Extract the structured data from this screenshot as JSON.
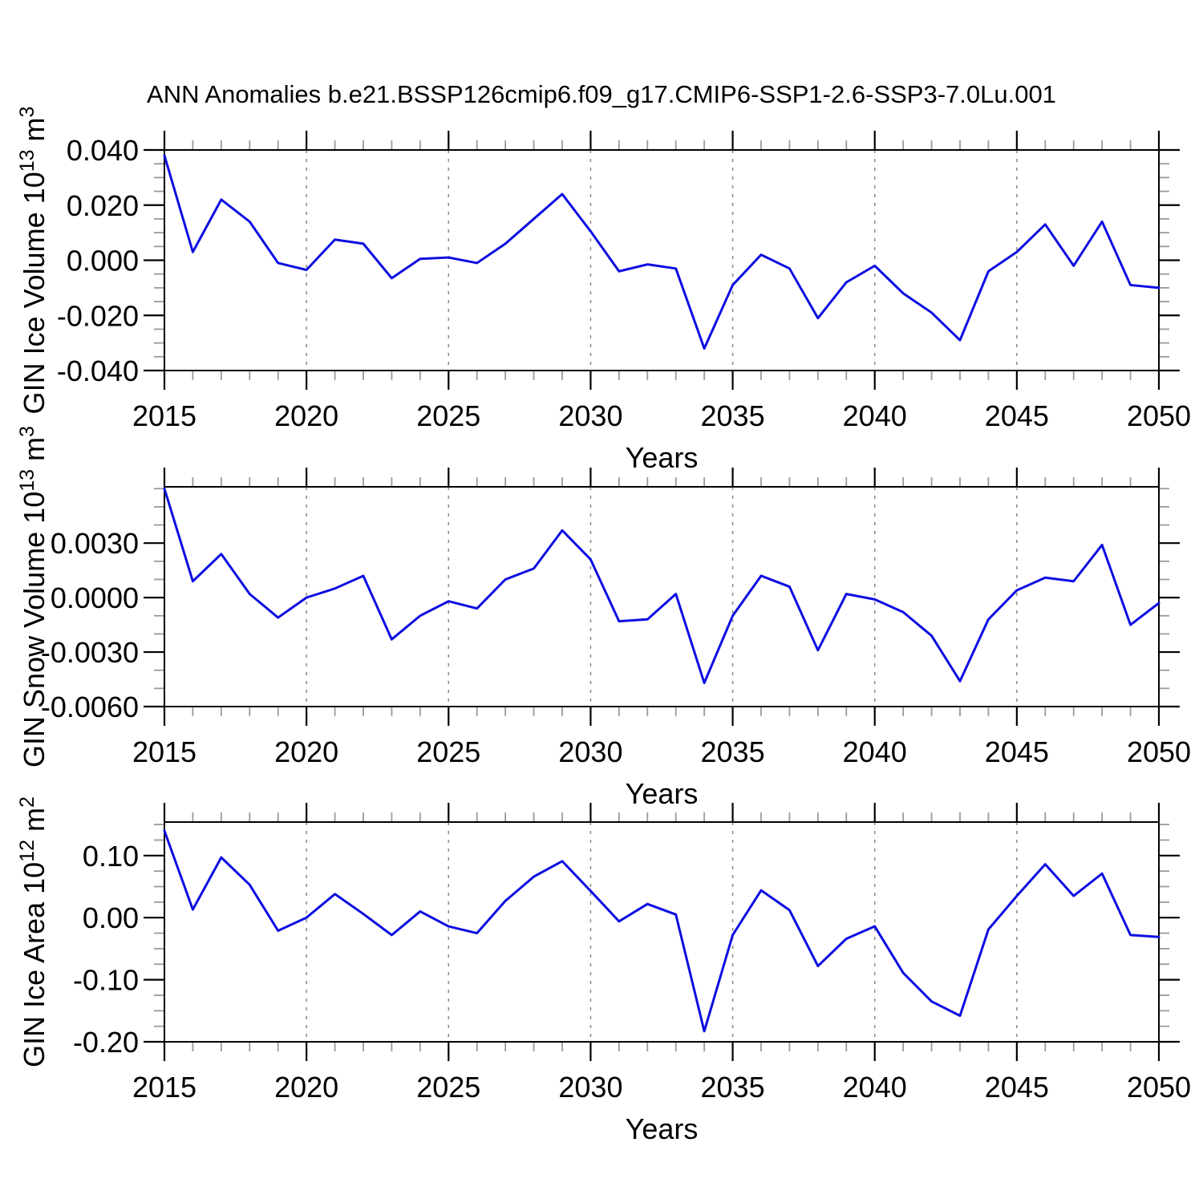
{
  "title": "ANN Anomalies b.e21.BSSP126cmip6.f09_g17.CMIP6-SSP1-2.6-SSP3-7.0Lu.001",
  "colors": {
    "line": "#0d0de2",
    "axis": "#000000",
    "minor_tick": "#9a9a9a",
    "grid": "#8a8a8a",
    "text": "#000000",
    "background": "#ffffff"
  },
  "chart_data": [
    {
      "type": "line",
      "id": "ice-volume",
      "ylabel": "GIN Ice Volume 10¹³ m³",
      "ylabel_parts": [
        {
          "text": "GIN Ice Volume 10",
          "super": false
        },
        {
          "text": "13",
          "super": true
        },
        {
          "text": " m",
          "super": false
        },
        {
          "text": "3",
          "super": true
        }
      ],
      "xlabel": "Years",
      "xlim": [
        2015,
        2050
      ],
      "ylim": [
        -0.04,
        0.04
      ],
      "xtick_values": [
        2015,
        2020,
        2025,
        2030,
        2035,
        2040,
        2045,
        2050
      ],
      "xtick_labels": [
        "2015",
        "2020",
        "2025",
        "2030",
        "2035",
        "2040",
        "2045",
        "2050"
      ],
      "x_major_step": 5,
      "x_minor_step": 1,
      "ytick_values": [
        0.04,
        0.02,
        0.0,
        -0.02,
        -0.04
      ],
      "ytick_labels": [
        "0.040",
        "0.020",
        "0.000",
        "-0.020",
        "-0.040"
      ],
      "y_minor_step": 0.005,
      "grid_years": [
        2020,
        2025,
        2030,
        2035,
        2040,
        2045
      ],
      "x": [
        2015,
        2016,
        2017,
        2018,
        2019,
        2020,
        2021,
        2022,
        2023,
        2024,
        2025,
        2026,
        2027,
        2028,
        2029,
        2030,
        2031,
        2032,
        2033,
        2034,
        2035,
        2036,
        2037,
        2038,
        2039,
        2040,
        2041,
        2042,
        2043,
        2044,
        2045,
        2046,
        2047,
        2048,
        2049,
        2050
      ],
      "values": [
        0.038,
        0.003,
        0.022,
        0.014,
        -0.001,
        -0.0035,
        0.0075,
        0.006,
        -0.0065,
        0.0005,
        0.001,
        -0.001,
        0.006,
        0.015,
        0.024,
        0.0105,
        -0.004,
        -0.0015,
        -0.003,
        -0.032,
        -0.009,
        0.002,
        -0.003,
        -0.021,
        -0.008,
        -0.002,
        -0.012,
        -0.019,
        -0.029,
        -0.004,
        0.003,
        0.013,
        -0.002,
        0.014,
        -0.009,
        -0.01
      ]
    },
    {
      "type": "line",
      "id": "snow-volume",
      "ylabel": "GIN Snow Volume 10¹³ m³",
      "ylabel_parts": [
        {
          "text": "GIN Snow Volume 10",
          "super": false
        },
        {
          "text": "13",
          "super": true
        },
        {
          "text": " m",
          "super": false
        },
        {
          "text": "3",
          "super": true
        }
      ],
      "xlabel": "Years",
      "xlim": [
        2015,
        2050
      ],
      "ylim": [
        -0.006,
        0.0061
      ],
      "xtick_values": [
        2015,
        2020,
        2025,
        2030,
        2035,
        2040,
        2045,
        2050
      ],
      "xtick_labels": [
        "2015",
        "2020",
        "2025",
        "2030",
        "2035",
        "2040",
        "2045",
        "2050"
      ],
      "x_major_step": 5,
      "x_minor_step": 1,
      "ytick_values": [
        0.003,
        0.0,
        -0.003,
        -0.006
      ],
      "ytick_labels": [
        "0.0030",
        "0.0000",
        "-0.0030",
        "-0.0060"
      ],
      "y_minor_step": 0.001,
      "grid_years": [
        2020,
        2025,
        2030,
        2035,
        2040,
        2045
      ],
      "x": [
        2015,
        2016,
        2017,
        2018,
        2019,
        2020,
        2021,
        2022,
        2023,
        2024,
        2025,
        2026,
        2027,
        2028,
        2029,
        2030,
        2031,
        2032,
        2033,
        2034,
        2035,
        2036,
        2037,
        2038,
        2039,
        2040,
        2041,
        2042,
        2043,
        2044,
        2045,
        2046,
        2047,
        2048,
        2049,
        2050
      ],
      "values": [
        0.006,
        0.0009,
        0.0024,
        0.0002,
        -0.0011,
        0.0,
        0.0005,
        0.0012,
        -0.0023,
        -0.001,
        -0.0002,
        -0.0006,
        0.001,
        0.0016,
        0.0037,
        0.0021,
        -0.0013,
        -0.0012,
        0.0002,
        -0.0047,
        -0.001,
        0.0012,
        0.0006,
        -0.0029,
        0.0002,
        -0.0001,
        -0.0008,
        -0.0021,
        -0.0046,
        -0.0012,
        0.0004,
        0.0011,
        0.0009,
        0.0029,
        -0.0015,
        -0.0003
      ]
    },
    {
      "type": "line",
      "id": "ice-area",
      "ylabel": "GIN Ice Area 10¹² m²",
      "ylabel_parts": [
        {
          "text": "GIN Ice Area 10",
          "super": false
        },
        {
          "text": "12",
          "super": true
        },
        {
          "text": " m",
          "super": false
        },
        {
          "text": "2",
          "super": true
        }
      ],
      "xlabel": "Years",
      "xlim": [
        2015,
        2050
      ],
      "ylim": [
        -0.2,
        0.154
      ],
      "xtick_values": [
        2015,
        2020,
        2025,
        2030,
        2035,
        2040,
        2045,
        2050
      ],
      "xtick_labels": [
        "2015",
        "2020",
        "2025",
        "2030",
        "2035",
        "2040",
        "2045",
        "2050"
      ],
      "x_major_step": 5,
      "x_minor_step": 1,
      "ytick_values": [
        0.1,
        0.0,
        -0.1,
        -0.2
      ],
      "ytick_labels": [
        "0.10",
        "0.00",
        "-0.10",
        "-0.20"
      ],
      "y_minor_step": 0.025,
      "grid_years": [
        2020,
        2025,
        2030,
        2035,
        2040,
        2045
      ],
      "x": [
        2015,
        2016,
        2017,
        2018,
        2019,
        2020,
        2021,
        2022,
        2023,
        2024,
        2025,
        2026,
        2027,
        2028,
        2029,
        2030,
        2031,
        2032,
        2033,
        2034,
        2035,
        2036,
        2037,
        2038,
        2039,
        2040,
        2041,
        2042,
        2043,
        2044,
        2045,
        2046,
        2047,
        2048,
        2049,
        2050
      ],
      "values": [
        0.14,
        0.013,
        0.097,
        0.053,
        -0.021,
        0.0,
        0.038,
        0.006,
        -0.028,
        0.01,
        -0.014,
        -0.025,
        0.027,
        0.066,
        0.091,
        0.043,
        -0.006,
        0.022,
        0.005,
        -0.183,
        -0.028,
        0.044,
        0.012,
        -0.078,
        -0.034,
        -0.014,
        -0.089,
        -0.135,
        -0.158,
        -0.019,
        0.035,
        0.086,
        0.035,
        0.071,
        -0.028,
        -0.031
      ]
    }
  ]
}
